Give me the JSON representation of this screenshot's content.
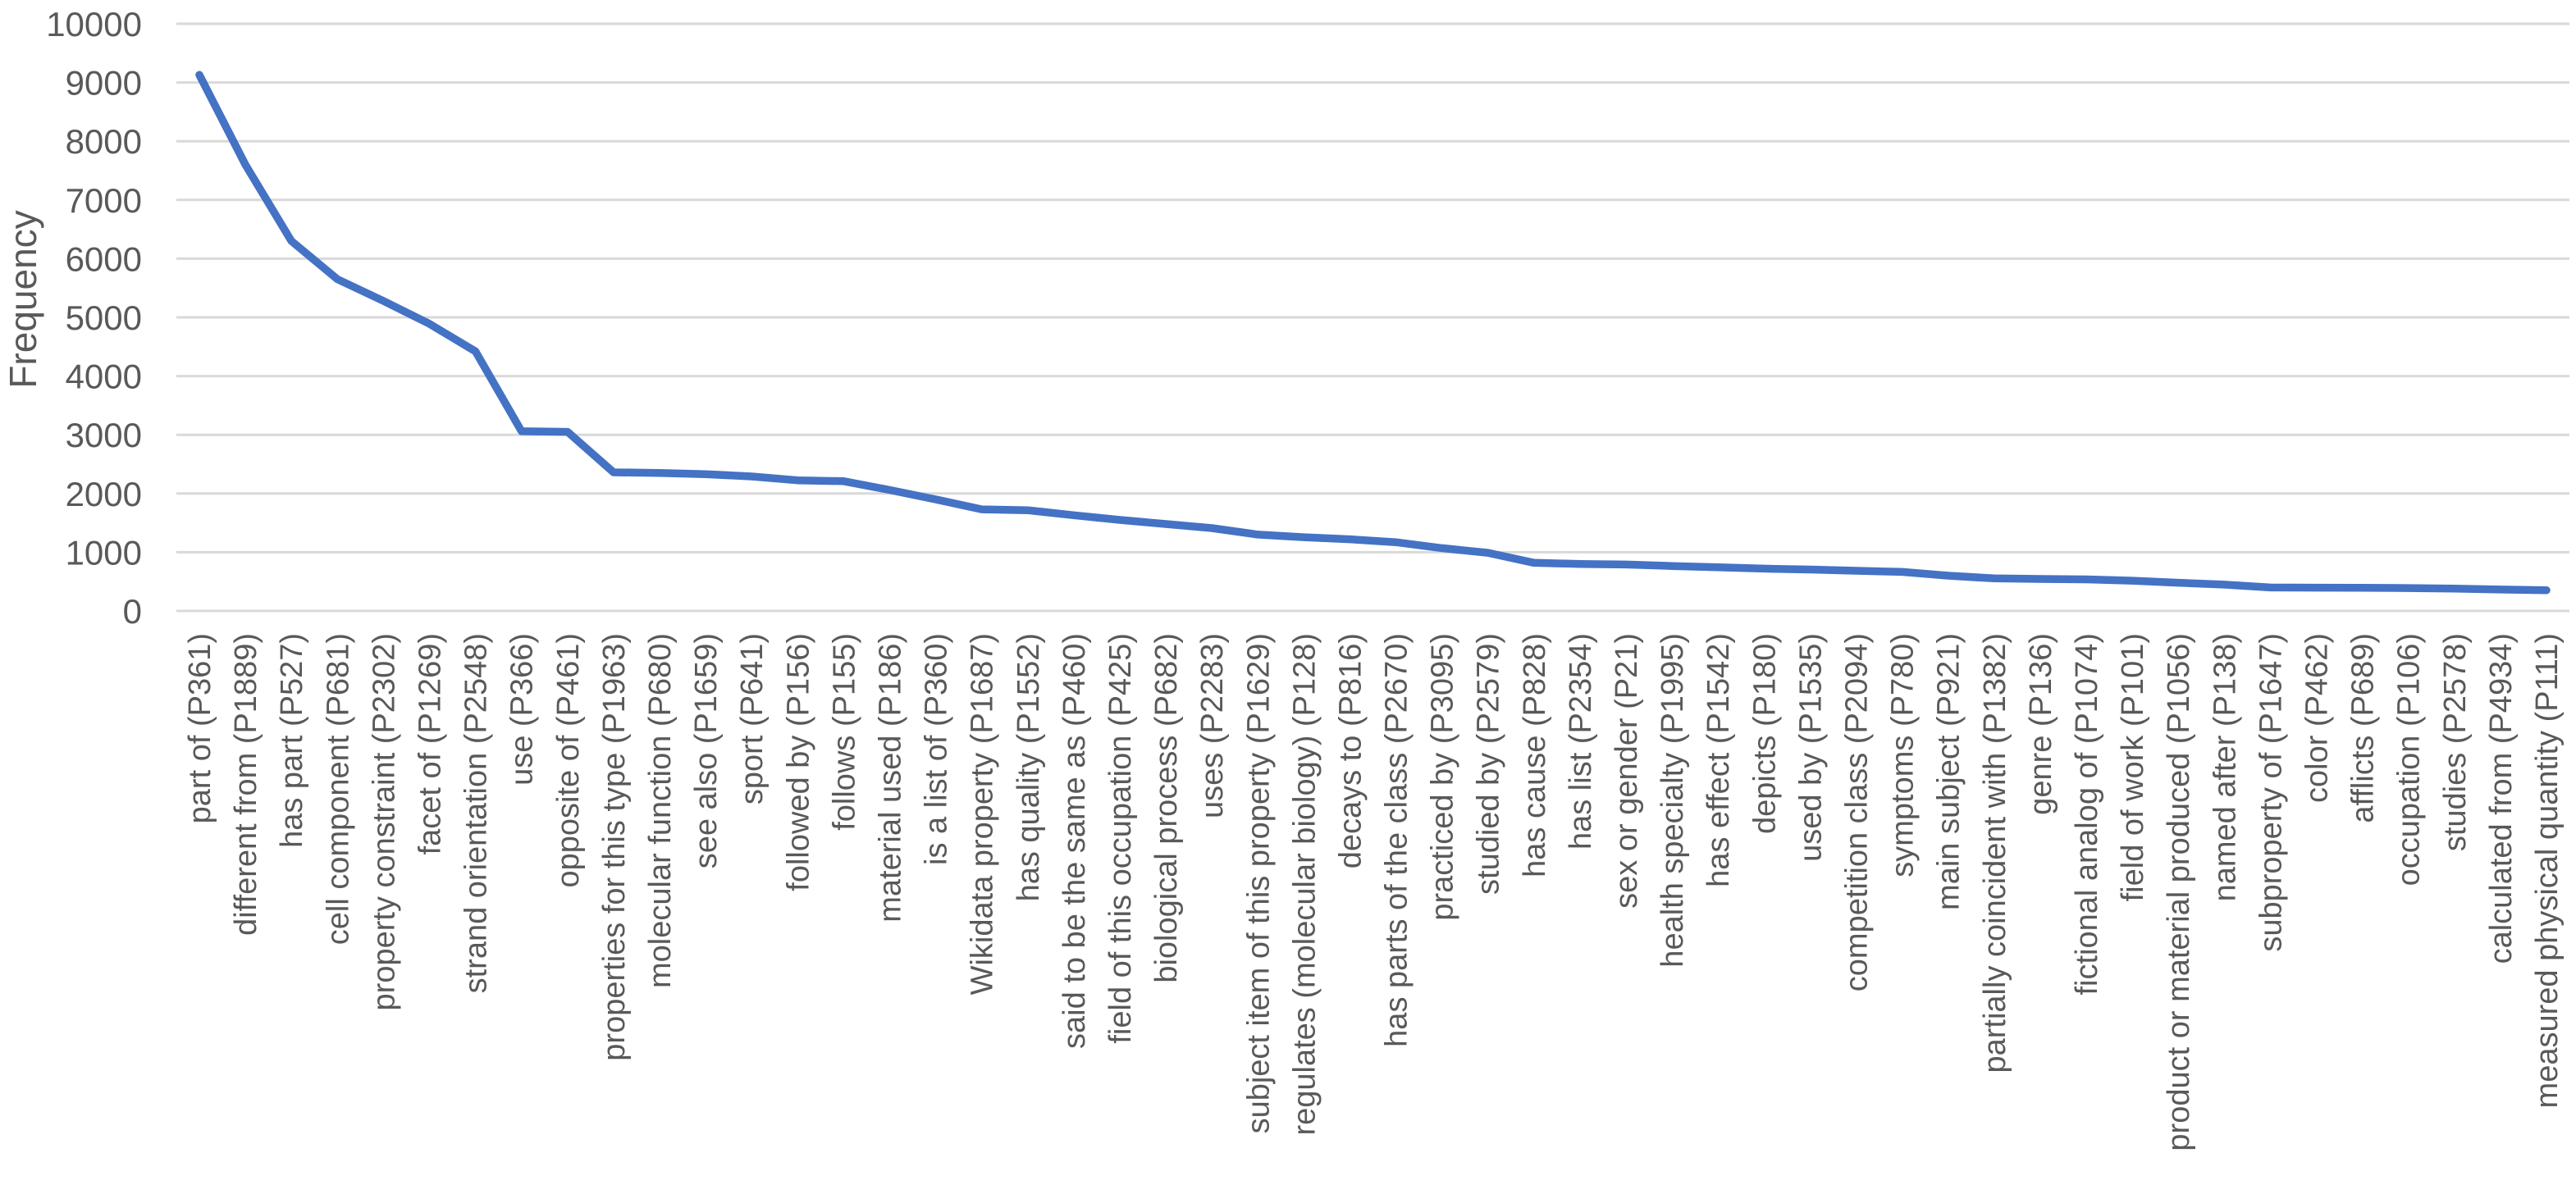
{
  "chart_data": {
    "type": "line",
    "title": "",
    "xlabel": "",
    "ylabel": "Frequency",
    "ylim": [
      0,
      10000
    ],
    "ytick_step": 1000,
    "ytick_labels": [
      "0",
      "1000",
      "2000",
      "3000",
      "4000",
      "5000",
      "6000",
      "7000",
      "8000",
      "9000",
      "10000"
    ],
    "grid": true,
    "legend_position": "none",
    "line_color": "#4472C4",
    "gridline_color": "#D9D9D9",
    "text_color": "#595959",
    "categories": [
      "part of (P361)",
      "different from (P1889)",
      "has part (P527)",
      "cell component (P681)",
      "property constraint (P2302)",
      "facet of (P1269)",
      "strand orientation (P2548)",
      "use (P366)",
      "opposite of (P461)",
      "properties for this type (P1963)",
      "molecular function (P680)",
      "see also (P1659)",
      "sport (P641)",
      "followed by (P156)",
      "follows (P155)",
      "material used (P186)",
      "is a list of (P360)",
      "Wikidata property (P1687)",
      "has quality (P1552)",
      "said to be the same as (P460)",
      "field of this occupation (P425)",
      "biological process (P682)",
      "uses (P2283)",
      "subject item of this property (P1629)",
      "regulates (molecular biology) (P128)",
      "decays to (P816)",
      "has parts of the class (P2670)",
      "practiced by (P3095)",
      "studied by (P2579)",
      "has cause (P828)",
      "has list (P2354)",
      "sex or gender (P21)",
      "health specialty (P1995)",
      "has effect (P1542)",
      "depicts (P180)",
      "used by (P1535)",
      "competition class (P2094)",
      "symptoms (P780)",
      "main subject (P921)",
      "partially coincident with (P1382)",
      "genre (P136)",
      "fictional analog of (P1074)",
      "field of work (P101)",
      "product or material produced (P1056)",
      "named after (P138)",
      "subproperty of (P1647)",
      "color (P462)",
      "afflicts (P689)",
      "occupation (P106)",
      "studies (P2578)",
      "calculated from (P4934)",
      "measured physical quantity (P111)"
    ],
    "values": [
      9130,
      7600,
      6300,
      5650,
      5280,
      4890,
      4420,
      3060,
      3050,
      2360,
      2350,
      2330,
      2290,
      2225,
      2210,
      2060,
      1900,
      1730,
      1715,
      1630,
      1550,
      1480,
      1410,
      1300,
      1255,
      1220,
      1170,
      1070,
      990,
      820,
      800,
      790,
      765,
      745,
      720,
      705,
      685,
      665,
      600,
      555,
      545,
      538,
      515,
      480,
      448,
      400,
      397,
      395,
      390,
      380,
      365,
      353
    ]
  }
}
